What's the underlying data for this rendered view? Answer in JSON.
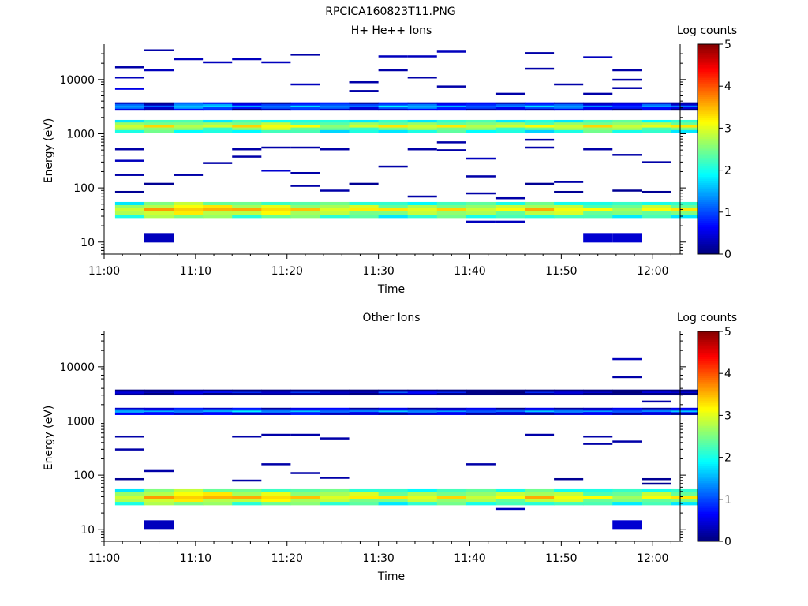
{
  "figure_title": "RPCICA160823T11.PNG",
  "panels": [
    {
      "title": "H+ He++ Ions",
      "xlabel": "Time",
      "ylabel": "Energy (eV)",
      "colorbar_label": "Log counts"
    },
    {
      "title": "Other Ions",
      "xlabel": "Time",
      "ylabel": "Energy (eV)",
      "colorbar_label": "Log counts"
    }
  ],
  "chart_data": [
    {
      "type": "heatmap",
      "title": "H+ He++ Ions",
      "xlabel": "Time",
      "ylabel": "Energy (eV)",
      "xlim": [
        "11:00",
        "12:03"
      ],
      "ylim": [
        6,
        45000
      ],
      "y_scale": "log",
      "x_ticks": [
        "11:00",
        "11:10",
        "11:20",
        "11:30",
        "11:40",
        "11:50",
        "12:00"
      ],
      "y_ticks": [
        "10",
        "100",
        "1000",
        "10000"
      ],
      "colorbar": {
        "label": "Log counts",
        "range": [
          0,
          5
        ],
        "ticks": [
          "0",
          "1",
          "2",
          "3",
          "4",
          "5"
        ],
        "colormap": "jet"
      },
      "time_bins_min": [
        1.2,
        4.4,
        7.6,
        10.8,
        14.0,
        17.2,
        20.4,
        23.6,
        26.8,
        30.0,
        33.2,
        36.4,
        39.6,
        42.8,
        46.0,
        49.2,
        52.4,
        55.6,
        58.8,
        62.0
      ],
      "bands": [
        {
          "e_lo": 1050,
          "e_hi": 1800,
          "log_counts": [
            3.0,
            3.2,
            3.0,
            2.9,
            3.1,
            3.2,
            3.0,
            2.8,
            2.9,
            3.0,
            3.0,
            3.1,
            3.0,
            2.9,
            2.9,
            3.0,
            3.2,
            3.1,
            3.0,
            3.0
          ]
        },
        {
          "e_lo": 2700,
          "e_hi": 3800,
          "log_counts": [
            1.5,
            1.0,
            1.8,
            1.7,
            1.2,
            1.3,
            1.6,
            1.5,
            1.2,
            1.6,
            1.6,
            1.4,
            1.3,
            1.3,
            1.5,
            1.5,
            1.2,
            1.1,
            1.4,
            1.0
          ]
        },
        {
          "e_lo": 28,
          "e_hi": 55,
          "log_counts": [
            3.0,
            3.5,
            3.6,
            3.5,
            3.3,
            3.4,
            3.3,
            3.2,
            3.2,
            3.0,
            3.1,
            3.2,
            3.1,
            3.1,
            3.3,
            3.2,
            3.0,
            2.9,
            3.1,
            3.0
          ]
        }
      ],
      "sparse_points": [
        {
          "t_min": 1.2,
          "energy": 17000,
          "log_counts": 0.2
        },
        {
          "t_min": 1.2,
          "energy": 11000,
          "log_counts": 0.3
        },
        {
          "t_min": 1.2,
          "energy": 6800,
          "log_counts": 0.5
        },
        {
          "t_min": 1.2,
          "energy": 520,
          "log_counts": 0.2
        },
        {
          "t_min": 1.2,
          "energy": 320,
          "log_counts": 0.3
        },
        {
          "t_min": 1.2,
          "energy": 175,
          "log_counts": 0.2
        },
        {
          "t_min": 1.2,
          "energy": 85,
          "log_counts": 0.1
        },
        {
          "t_min": 4.4,
          "energy": 35000,
          "log_counts": 0.2
        },
        {
          "t_min": 4.4,
          "energy": 15000,
          "log_counts": 0.3
        },
        {
          "t_min": 4.4,
          "energy": 120,
          "log_counts": 0.1
        },
        {
          "t_min": 4.4,
          "energy": 12,
          "log_counts": 0.2
        },
        {
          "t_min": 7.6,
          "energy": 24000,
          "log_counts": 0.3
        },
        {
          "t_min": 7.6,
          "energy": 175,
          "log_counts": 0.2
        },
        {
          "t_min": 10.8,
          "energy": 21000,
          "log_counts": 0.3
        },
        {
          "t_min": 10.8,
          "energy": 290,
          "log_counts": 0.2
        },
        {
          "t_min": 14.0,
          "energy": 24000,
          "log_counts": 0.3
        },
        {
          "t_min": 14.0,
          "energy": 520,
          "log_counts": 0.2
        },
        {
          "t_min": 14.0,
          "energy": 380,
          "log_counts": 0.2
        },
        {
          "t_min": 17.2,
          "energy": 21000,
          "log_counts": 0.3
        },
        {
          "t_min": 17.2,
          "energy": 560,
          "log_counts": 0.2
        },
        {
          "t_min": 17.2,
          "energy": 210,
          "log_counts": 0.4
        },
        {
          "t_min": 20.4,
          "energy": 29000,
          "log_counts": 0.2
        },
        {
          "t_min": 20.4,
          "energy": 8200,
          "log_counts": 0.3
        },
        {
          "t_min": 20.4,
          "energy": 560,
          "log_counts": 0.2
        },
        {
          "t_min": 20.4,
          "energy": 190,
          "log_counts": 0.2
        },
        {
          "t_min": 20.4,
          "energy": 110,
          "log_counts": 0.2
        },
        {
          "t_min": 23.6,
          "energy": 520,
          "log_counts": 0.2
        },
        {
          "t_min": 23.6,
          "energy": 90,
          "log_counts": 0.2
        },
        {
          "t_min": 26.8,
          "energy": 9000,
          "log_counts": 0.2
        },
        {
          "t_min": 26.8,
          "energy": 6200,
          "log_counts": 0.2
        },
        {
          "t_min": 26.8,
          "energy": 120,
          "log_counts": 0.1
        },
        {
          "t_min": 30.0,
          "energy": 27000,
          "log_counts": 0.3
        },
        {
          "t_min": 30.0,
          "energy": 15000,
          "log_counts": 0.2
        },
        {
          "t_min": 30.0,
          "energy": 250,
          "log_counts": 0.2
        },
        {
          "t_min": 33.2,
          "energy": 27000,
          "log_counts": 0.3
        },
        {
          "t_min": 33.2,
          "energy": 11000,
          "log_counts": 0.2
        },
        {
          "t_min": 33.2,
          "energy": 520,
          "log_counts": 0.2
        },
        {
          "t_min": 33.2,
          "energy": 70,
          "log_counts": 0.2
        },
        {
          "t_min": 36.4,
          "energy": 33000,
          "log_counts": 0.3
        },
        {
          "t_min": 36.4,
          "energy": 7500,
          "log_counts": 0.2
        },
        {
          "t_min": 36.4,
          "energy": 700,
          "log_counts": 0.2
        },
        {
          "t_min": 36.4,
          "energy": 500,
          "log_counts": 0.2
        },
        {
          "t_min": 39.6,
          "energy": 350,
          "log_counts": 0.3
        },
        {
          "t_min": 39.6,
          "energy": 165,
          "log_counts": 0.2
        },
        {
          "t_min": 39.6,
          "energy": 80,
          "log_counts": 0.2
        },
        {
          "t_min": 39.6,
          "energy": 24,
          "log_counts": 0.3
        },
        {
          "t_min": 42.8,
          "energy": 5500,
          "log_counts": 0.2
        },
        {
          "t_min": 42.8,
          "energy": 65,
          "log_counts": 0.2
        },
        {
          "t_min": 42.8,
          "energy": 24,
          "log_counts": 0.3
        },
        {
          "t_min": 46.0,
          "energy": 31000,
          "log_counts": 0.2
        },
        {
          "t_min": 46.0,
          "energy": 16000,
          "log_counts": 0.2
        },
        {
          "t_min": 46.0,
          "energy": 780,
          "log_counts": 0.2
        },
        {
          "t_min": 46.0,
          "energy": 560,
          "log_counts": 0.2
        },
        {
          "t_min": 46.0,
          "energy": 120,
          "log_counts": 0.1
        },
        {
          "t_min": 49.2,
          "energy": 8200,
          "log_counts": 0.2
        },
        {
          "t_min": 49.2,
          "energy": 130,
          "log_counts": 0.2
        },
        {
          "t_min": 49.2,
          "energy": 85,
          "log_counts": 0.1
        },
        {
          "t_min": 52.4,
          "energy": 26000,
          "log_counts": 0.3
        },
        {
          "t_min": 52.4,
          "energy": 5500,
          "log_counts": 0.2
        },
        {
          "t_min": 52.4,
          "energy": 520,
          "log_counts": 0.2
        },
        {
          "t_min": 52.4,
          "energy": 12,
          "log_counts": 0.3
        },
        {
          "t_min": 55.6,
          "energy": 15000,
          "log_counts": 0.2
        },
        {
          "t_min": 55.6,
          "energy": 10000,
          "log_counts": 0.2
        },
        {
          "t_min": 55.6,
          "energy": 7000,
          "log_counts": 0.2
        },
        {
          "t_min": 55.6,
          "energy": 410,
          "log_counts": 0.2
        },
        {
          "t_min": 55.6,
          "energy": 90,
          "log_counts": 0.1
        },
        {
          "t_min": 55.6,
          "energy": 12,
          "log_counts": 0.3
        },
        {
          "t_min": 58.8,
          "energy": 300,
          "log_counts": 0.2
        },
        {
          "t_min": 58.8,
          "energy": 85,
          "log_counts": 0.1
        }
      ]
    },
    {
      "type": "heatmap",
      "title": "Other Ions",
      "xlabel": "Time",
      "ylabel": "Energy (eV)",
      "xlim": [
        "11:00",
        "12:03"
      ],
      "ylim": [
        6,
        45000
      ],
      "y_scale": "log",
      "x_ticks": [
        "11:00",
        "11:10",
        "11:20",
        "11:30",
        "11:40",
        "11:50",
        "12:00"
      ],
      "y_ticks": [
        "10",
        "100",
        "1000",
        "10000"
      ],
      "colorbar": {
        "label": "Log counts",
        "range": [
          0,
          5
        ],
        "ticks": [
          "0",
          "1",
          "2",
          "3",
          "4",
          "5"
        ],
        "colormap": "jet"
      },
      "time_bins_min": [
        1.2,
        4.4,
        7.6,
        10.8,
        14.0,
        17.2,
        20.4,
        23.6,
        26.8,
        30.0,
        33.2,
        36.4,
        39.6,
        42.8,
        46.0,
        49.2,
        52.4,
        55.6,
        58.8,
        62.0
      ],
      "bands": [
        {
          "e_lo": 1300,
          "e_hi": 1750,
          "log_counts": [
            1.6,
            1.4,
            1.5,
            1.5,
            1.6,
            1.4,
            1.5,
            1.4,
            1.3,
            1.4,
            1.4,
            1.3,
            1.3,
            1.2,
            1.4,
            1.4,
            1.3,
            1.3,
            1.3,
            1.4
          ]
        },
        {
          "e_lo": 3000,
          "e_hi": 3800,
          "log_counts": [
            0.6,
            0.2,
            0.8,
            0.7,
            0.6,
            0.5,
            0.8,
            0.6,
            0.3,
            0.9,
            0.8,
            0.7,
            0.3,
            0.0,
            0.6,
            0.6,
            0.3,
            0.2,
            0.5,
            0.2
          ]
        },
        {
          "e_lo": 28,
          "e_hi": 55,
          "log_counts": [
            3.0,
            3.5,
            3.6,
            3.5,
            3.3,
            3.4,
            3.3,
            3.2,
            3.2,
            3.0,
            3.1,
            3.2,
            3.1,
            3.1,
            3.3,
            3.2,
            3.0,
            2.9,
            3.1,
            3.0
          ]
        }
      ],
      "sparse_points": [
        {
          "t_min": 1.2,
          "energy": 520,
          "log_counts": 0.2
        },
        {
          "t_min": 1.2,
          "energy": 300,
          "log_counts": 0.2
        },
        {
          "t_min": 1.2,
          "energy": 85,
          "log_counts": 0.1
        },
        {
          "t_min": 4.4,
          "energy": 120,
          "log_counts": 0.2
        },
        {
          "t_min": 4.4,
          "energy": 12,
          "log_counts": 0.2
        },
        {
          "t_min": 14.0,
          "energy": 520,
          "log_counts": 0.2
        },
        {
          "t_min": 14.0,
          "energy": 80,
          "log_counts": 0.2
        },
        {
          "t_min": 17.2,
          "energy": 560,
          "log_counts": 0.2
        },
        {
          "t_min": 17.2,
          "energy": 160,
          "log_counts": 0.2
        },
        {
          "t_min": 20.4,
          "energy": 560,
          "log_counts": 0.2
        },
        {
          "t_min": 20.4,
          "energy": 110,
          "log_counts": 0.2
        },
        {
          "t_min": 23.6,
          "energy": 480,
          "log_counts": 0.2
        },
        {
          "t_min": 23.6,
          "energy": 90,
          "log_counts": 0.2
        },
        {
          "t_min": 39.6,
          "energy": 160,
          "log_counts": 0.2
        },
        {
          "t_min": 42.8,
          "energy": 24,
          "log_counts": 0.3
        },
        {
          "t_min": 46.0,
          "energy": 560,
          "log_counts": 0.2
        },
        {
          "t_min": 49.2,
          "energy": 85,
          "log_counts": 0.1
        },
        {
          "t_min": 52.4,
          "energy": 520,
          "log_counts": 0.2
        },
        {
          "t_min": 52.4,
          "energy": 380,
          "log_counts": 0.2
        },
        {
          "t_min": 55.6,
          "energy": 14000,
          "log_counts": 0.3
        },
        {
          "t_min": 55.6,
          "energy": 6500,
          "log_counts": 0.2
        },
        {
          "t_min": 55.6,
          "energy": 420,
          "log_counts": 0.2
        },
        {
          "t_min": 55.6,
          "energy": 12,
          "log_counts": 0.3
        },
        {
          "t_min": 58.8,
          "energy": 2300,
          "log_counts": 0.2
        },
        {
          "t_min": 58.8,
          "energy": 85,
          "log_counts": 0.1
        },
        {
          "t_min": 58.8,
          "energy": 70,
          "log_counts": 0.1
        }
      ]
    }
  ]
}
